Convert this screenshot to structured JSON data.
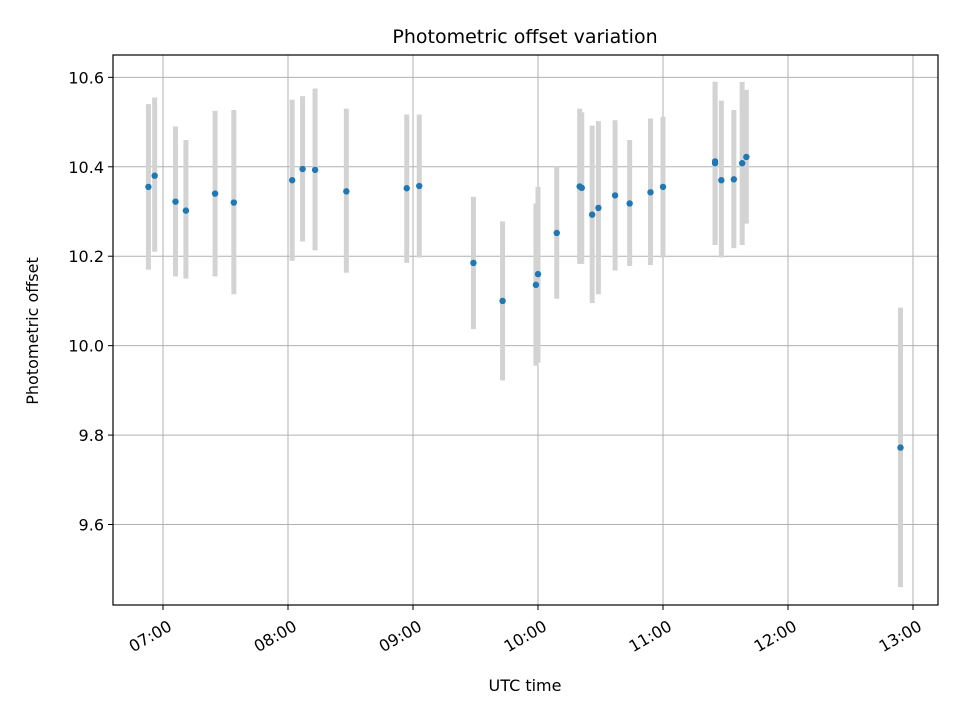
{
  "chart_data": {
    "type": "scatter",
    "title": "Photometric offset variation",
    "xlabel": "UTC time",
    "ylabel": "Photometric offset",
    "xlim": [
      "06:36",
      "13:12"
    ],
    "ylim": [
      9.42,
      10.65
    ],
    "grid": true,
    "x_ticks": [
      "07:00",
      "08:00",
      "09:00",
      "10:00",
      "11:00",
      "12:00",
      "13:00"
    ],
    "y_ticks": [
      "9.6",
      "9.8",
      "10.0",
      "10.2",
      "10.4",
      "10.6"
    ],
    "colors": {
      "point": "#1f77b4",
      "errorbar": "#d3d3d3",
      "grid": "#b0b0b0"
    },
    "series": [
      {
        "points": [
          {
            "x": "06:53",
            "y": 10.355,
            "ylo": 10.17,
            "yhi": 10.54
          },
          {
            "x": "06:56",
            "y": 10.38,
            "ylo": 10.21,
            "yhi": 10.555
          },
          {
            "x": "07:06",
            "y": 10.322,
            "ylo": 10.155,
            "yhi": 10.49
          },
          {
            "x": "07:11",
            "y": 10.302,
            "ylo": 10.15,
            "yhi": 10.46
          },
          {
            "x": "07:25",
            "y": 10.34,
            "ylo": 10.155,
            "yhi": 10.525
          },
          {
            "x": "07:34",
            "y": 10.32,
            "ylo": 10.115,
            "yhi": 10.527
          },
          {
            "x": "08:02",
            "y": 10.37,
            "ylo": 10.19,
            "yhi": 10.55
          },
          {
            "x": "08:07",
            "y": 10.395,
            "ylo": 10.233,
            "yhi": 10.558
          },
          {
            "x": "08:13",
            "y": 10.393,
            "ylo": 10.213,
            "yhi": 10.575
          },
          {
            "x": "08:28",
            "y": 10.345,
            "ylo": 10.163,
            "yhi": 10.53
          },
          {
            "x": "08:57",
            "y": 10.352,
            "ylo": 10.185,
            "yhi": 10.517
          },
          {
            "x": "09:03",
            "y": 10.357,
            "ylo": 10.197,
            "yhi": 10.517
          },
          {
            "x": "09:29",
            "y": 10.185,
            "ylo": 10.037,
            "yhi": 10.333
          },
          {
            "x": "09:43",
            "y": 10.1,
            "ylo": 9.922,
            "yhi": 10.278
          },
          {
            "x": "09:59",
            "y": 10.136,
            "ylo": 9.955,
            "yhi": 10.318
          },
          {
            "x": "10:00",
            "y": 10.16,
            "ylo": 9.962,
            "yhi": 10.355
          },
          {
            "x": "10:09",
            "y": 10.252,
            "ylo": 10.105,
            "yhi": 10.4
          },
          {
            "x": "10:20",
            "y": 10.356,
            "ylo": 10.183,
            "yhi": 10.53
          },
          {
            "x": "10:21",
            "y": 10.353,
            "ylo": 10.183,
            "yhi": 10.522
          },
          {
            "x": "10:26",
            "y": 10.293,
            "ylo": 10.095,
            "yhi": 10.492
          },
          {
            "x": "10:29",
            "y": 10.308,
            "ylo": 10.115,
            "yhi": 10.502
          },
          {
            "x": "10:37",
            "y": 10.336,
            "ylo": 10.168,
            "yhi": 10.504
          },
          {
            "x": "10:44",
            "y": 10.318,
            "ylo": 10.178,
            "yhi": 10.46
          },
          {
            "x": "10:54",
            "y": 10.343,
            "ylo": 10.18,
            "yhi": 10.508
          },
          {
            "x": "11:00",
            "y": 10.355,
            "ylo": 10.197,
            "yhi": 10.512
          },
          {
            "x": "11:25",
            "y": 10.408,
            "ylo": 10.225,
            "yhi": 10.59
          },
          {
            "x": "11:25",
            "y": 10.412,
            "ylo": 10.235,
            "yhi": 10.59
          },
          {
            "x": "11:28",
            "y": 10.37,
            "ylo": 10.197,
            "yhi": 10.548
          },
          {
            "x": "11:34",
            "y": 10.372,
            "ylo": 10.218,
            "yhi": 10.527
          },
          {
            "x": "11:38",
            "y": 10.408,
            "ylo": 10.225,
            "yhi": 10.59
          },
          {
            "x": "11:40",
            "y": 10.422,
            "ylo": 10.273,
            "yhi": 10.572
          },
          {
            "x": "12:54",
            "y": 9.772,
            "ylo": 9.46,
            "yhi": 10.085
          }
        ]
      }
    ]
  }
}
